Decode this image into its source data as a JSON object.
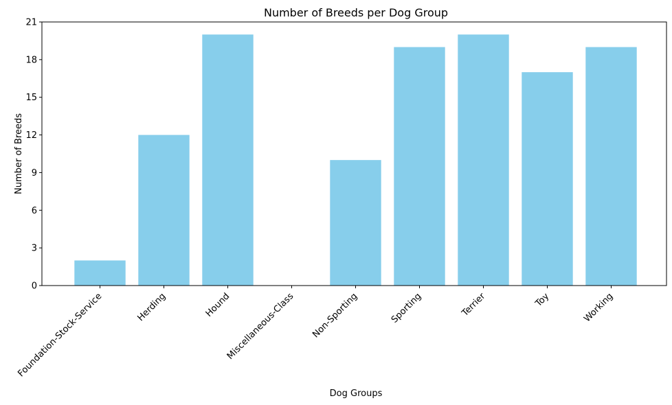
{
  "chart_data": {
    "type": "bar",
    "title": "Number of Breeds per Dog Group",
    "xlabel": "Dog Groups",
    "ylabel": "Number of Breeds",
    "categories": [
      "Foundation-Stock-Service",
      "Herding",
      "Hound",
      "Miscellaneous-Class",
      "Non-Sporting",
      "Sporting",
      "Terrier",
      "Toy",
      "Working"
    ],
    "values": [
      2,
      12,
      20,
      0,
      10,
      19,
      20,
      17,
      19
    ],
    "ylim": [
      0,
      21
    ],
    "yticks": [
      0,
      3,
      6,
      9,
      12,
      15,
      18,
      21
    ],
    "bar_color": "#87CEEB",
    "grid": false,
    "legend": false
  }
}
